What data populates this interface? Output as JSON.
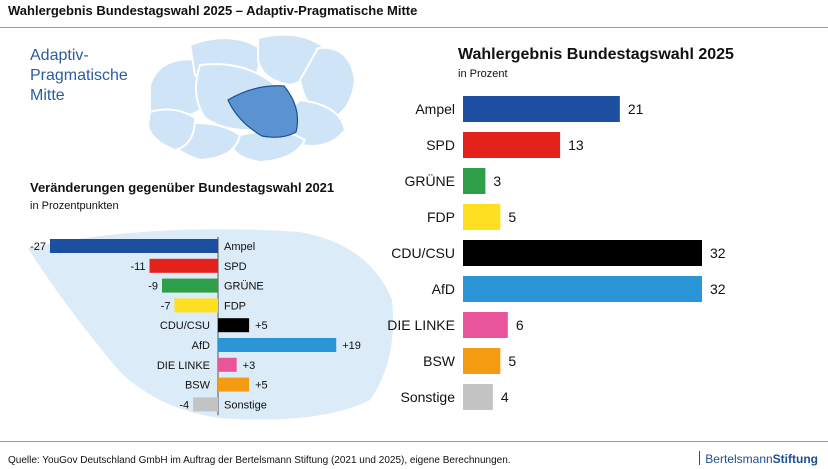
{
  "page": {
    "title": "Wahlergebnis Bundestagswahl 2025 – Adaptiv-Pragmatische Mitte",
    "segment_label_lines": [
      "Adaptiv-",
      "Pragmatische",
      "Mitte"
    ],
    "source": "Quelle: YouGov Deutschland GmbH im Auftrag der Bertelsmann Stiftung (2021 und 2025), eigene Berechnungen.",
    "brand_regular": "Bertelsmann",
    "brand_bold": "Stiftung"
  },
  "colors": {
    "Ampel": "#1c4fa0",
    "SPD": "#e3221b",
    "GRÜNE": "#2e9e48",
    "FDP": "#ffe020",
    "CDU/CSU": "#000000",
    "AfD": "#2a96d8",
    "DIE LINKE": "#e8559a",
    "BSW": "#f39c12",
    "Sonstige": "#c4c4c4",
    "blob_fill": "#cfe4f7",
    "blob_highlight": "#5b92d1",
    "accent_text": "#2a5d9f"
  },
  "chart_data": [
    {
      "type": "bar",
      "orientation": "horizontal",
      "title": "Wahlergebnis Bundestagswahl 2025",
      "subtitle": "in Prozent",
      "categories": [
        "Ampel",
        "SPD",
        "GRÜNE",
        "FDP",
        "CDU/CSU",
        "AfD",
        "DIE LINKE",
        "BSW",
        "Sonstige"
      ],
      "values": [
        21,
        13,
        3,
        5,
        32,
        32,
        6,
        5,
        4
      ],
      "labels": [
        "21",
        "13",
        "3",
        "5",
        "32",
        "32",
        "6",
        "5",
        "4"
      ],
      "xlim": [
        0,
        32
      ]
    },
    {
      "type": "bar",
      "orientation": "horizontal",
      "diverging": true,
      "title": "Veränderungen gegenüber Bundestagswahl 2021",
      "subtitle": "in Prozentpunkten",
      "categories": [
        "Ampel",
        "SPD",
        "GRÜNE",
        "FDP",
        "CDU/CSU",
        "AfD",
        "DIE LINKE",
        "BSW",
        "Sonstige"
      ],
      "values": [
        -27,
        -11,
        -9,
        -7,
        5,
        19,
        3,
        5,
        -4
      ],
      "labels": [
        "-27",
        "-11",
        "-9",
        "-7",
        "+5",
        "+19",
        "+3",
        "+5",
        "-4"
      ],
      "xlim": [
        -27,
        19
      ]
    }
  ]
}
